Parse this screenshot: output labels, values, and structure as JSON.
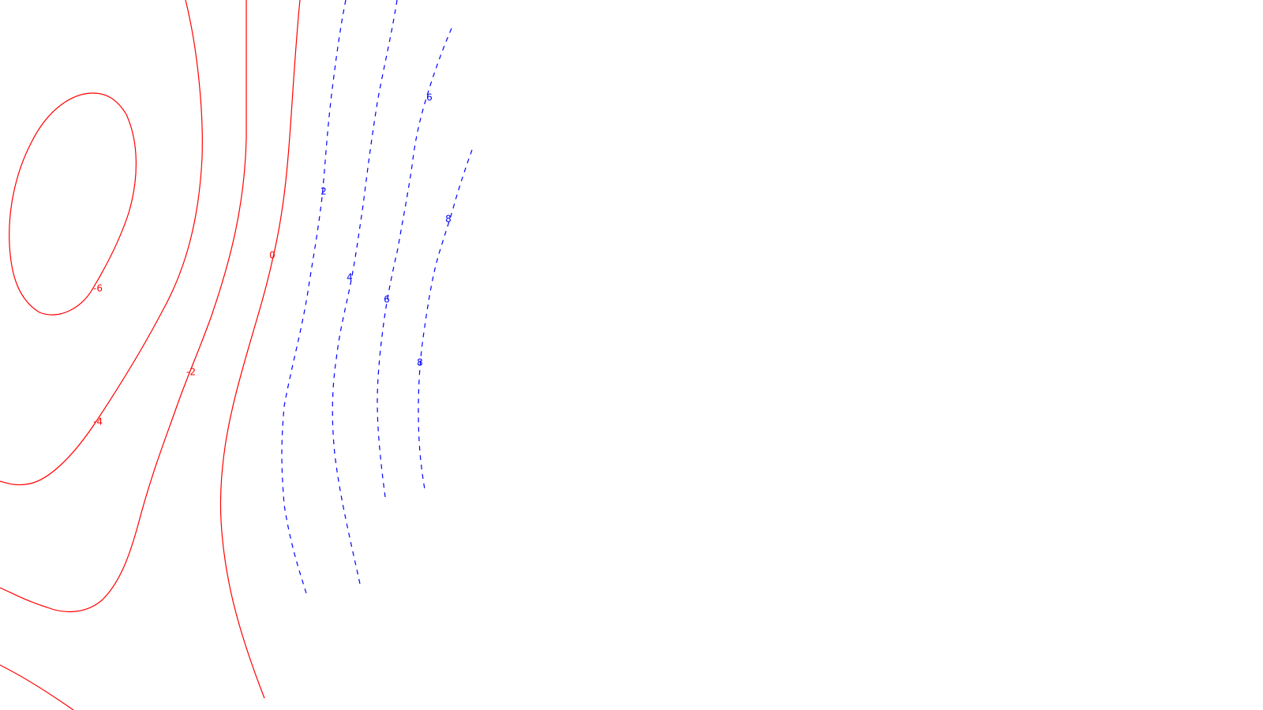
{
  "plot": {
    "colors": {
      "negative": "#ff0000",
      "positive": "#0000ff",
      "background": "#ffffff"
    },
    "negative_style": "solid",
    "positive_style": "dashed",
    "contours": [
      {
        "id": "-6",
        "label": "-6",
        "sign": "negative"
      },
      {
        "id": "-4",
        "label": "-4",
        "sign": "negative"
      },
      {
        "id": "-2",
        "label": "-2",
        "sign": "negative"
      },
      {
        "id": "-2b",
        "label": "",
        "sign": "negative"
      },
      {
        "id": "0",
        "label": "0",
        "sign": "negative"
      },
      {
        "id": "2",
        "label": "2",
        "sign": "positive"
      },
      {
        "id": "4",
        "label": "4",
        "sign": "positive"
      },
      {
        "id": "6",
        "label": "6",
        "sign": "positive"
      },
      {
        "id": "6b",
        "label": "6",
        "sign": "positive"
      },
      {
        "id": "8",
        "label": "8",
        "sign": "positive"
      },
      {
        "id": "8b",
        "label": "8",
        "sign": "positive"
      }
    ]
  }
}
